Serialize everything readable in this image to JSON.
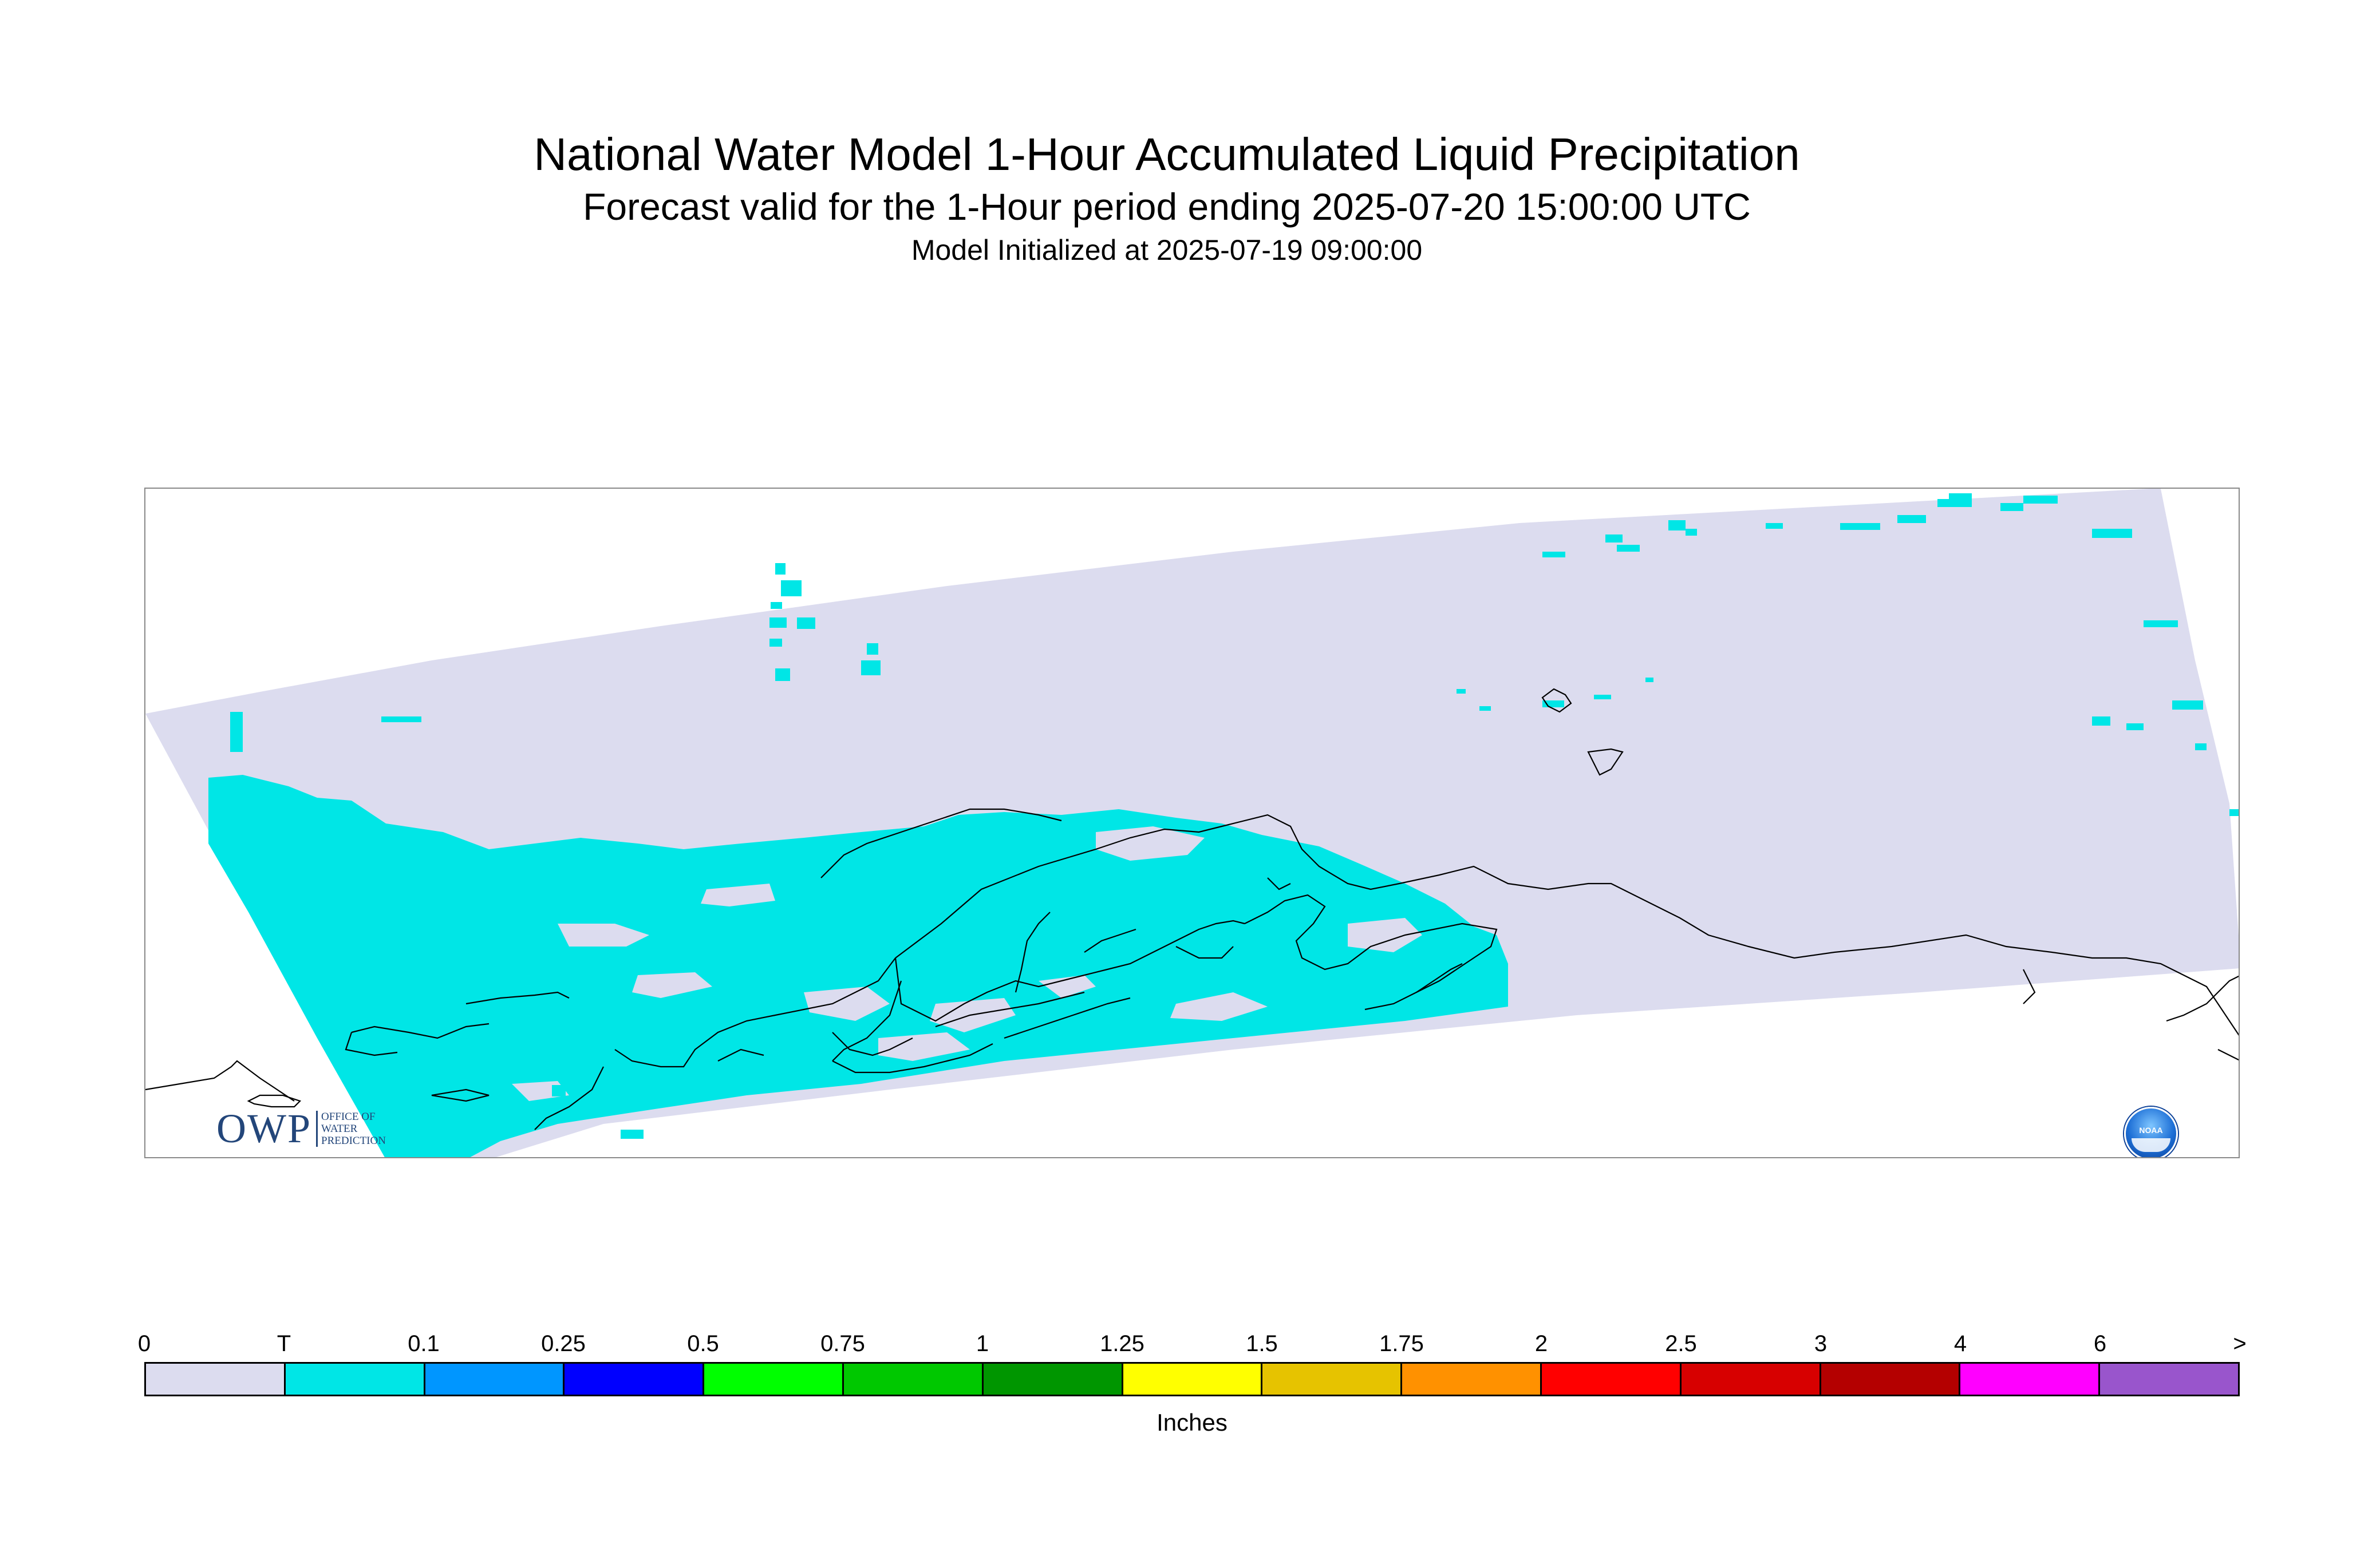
{
  "title": "National Water Model 1-Hour Accumulated Liquid Precipitation",
  "subtitle": "Forecast valid for the 1-Hour period ending 2025-07-20 15:00:00 UTC",
  "init_line": "Model Initialized at 2025-07-19 09:00:00",
  "logos": {
    "owp_text": "OWP",
    "owp_small": [
      "OFFICE OF",
      "WATER",
      "PREDICTION"
    ],
    "noaa_text": "NOAA"
  },
  "colors": {
    "domain_fill": "#dcdcef",
    "trace_fill": "#00e6e6",
    "coastline": "#000000"
  },
  "legend": {
    "units": "Inches",
    "labels": [
      "0",
      "T",
      "0.1",
      "0.25",
      "0.5",
      "0.75",
      "1",
      "1.25",
      "1.5",
      "1.75",
      "2",
      "2.5",
      "3",
      "4",
      "6",
      ">"
    ],
    "colors": [
      "#dcdcef",
      "#00e6e6",
      "#0096ff",
      "#0000ff",
      "#00ff00",
      "#00c800",
      "#009600",
      "#ffff00",
      "#e6c300",
      "#ff9100",
      "#ff0000",
      "#d70000",
      "#b40000",
      "#ff00ff",
      "#9955cc"
    ]
  }
}
